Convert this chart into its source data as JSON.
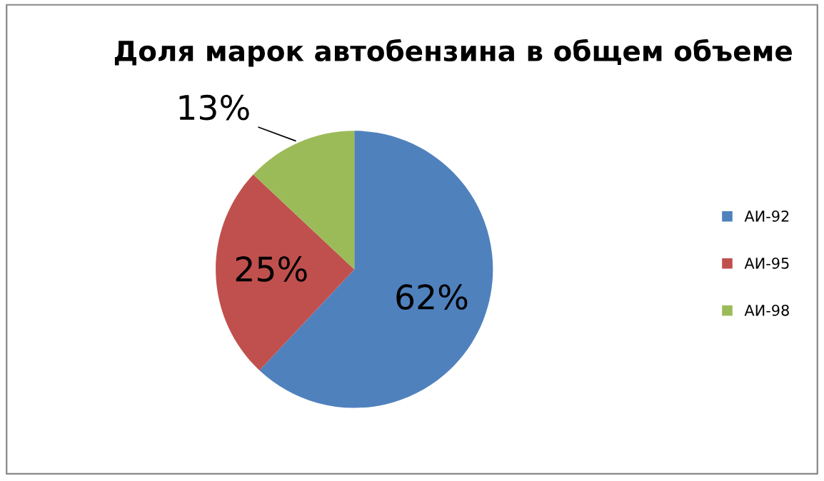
{
  "chart_data": {
    "type": "pie",
    "title": "Доля марок автобензина в общем объеме",
    "categories": [
      "АИ-92",
      "АИ-95",
      "АИ-98"
    ],
    "values": [
      62,
      25,
      13
    ],
    "colors": [
      "#4f81bd",
      "#c0504d",
      "#9bbb59"
    ],
    "value_labels": [
      "62%",
      "25%",
      "13%"
    ],
    "legend": "right"
  }
}
